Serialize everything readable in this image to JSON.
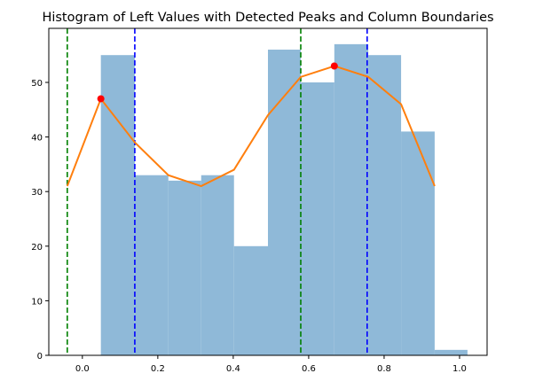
{
  "chart_data": {
    "type": "bar",
    "title": "Histogram of Left Values with Detected Peaks and Column Boundaries",
    "xlabel": "",
    "ylabel": "",
    "xlim": [
      -0.089,
      1.073
    ],
    "ylim": [
      0,
      59.9
    ],
    "grid": false,
    "xticks": [
      0.0,
      0.2,
      0.4,
      0.6,
      0.8,
      1.0
    ],
    "xtick_labels": [
      "0.0",
      "0.2",
      "0.4",
      "0.6",
      "0.8",
      "1.0"
    ],
    "yticks": [
      0,
      10,
      20,
      30,
      40,
      50
    ],
    "ytick_labels": [
      "0",
      "10",
      "20",
      "30",
      "40",
      "50"
    ],
    "histogram": {
      "color": "#8fb9d8",
      "bin_edges": [
        0.049,
        0.139,
        0.228,
        0.315,
        0.402,
        0.492,
        0.579,
        0.668,
        0.758,
        0.845,
        0.934,
        1.021
      ],
      "counts": [
        55,
        33,
        32,
        33,
        20,
        56,
        50,
        57,
        55,
        41,
        1
      ]
    },
    "density_line": {
      "color": "#ff7f0e",
      "x": [
        -0.04,
        0.049,
        0.139,
        0.228,
        0.315,
        0.402,
        0.492,
        0.579,
        0.668,
        0.758,
        0.845,
        0.934
      ],
      "y": [
        31,
        47,
        39,
        33,
        31,
        34,
        44,
        51,
        53,
        51,
        46,
        31
      ]
    },
    "peaks": {
      "color": "#ff0000",
      "x": [
        0.049,
        0.668
      ],
      "y": [
        47,
        53
      ]
    },
    "vlines": [
      {
        "x": -0.04,
        "color": "#008000",
        "style": "dashed"
      },
      {
        "x": 0.579,
        "color": "#008000",
        "style": "dashed"
      },
      {
        "x": 0.139,
        "color": "#0000ff",
        "style": "dashed"
      },
      {
        "x": 0.755,
        "color": "#0000ff",
        "style": "dashed"
      }
    ]
  }
}
